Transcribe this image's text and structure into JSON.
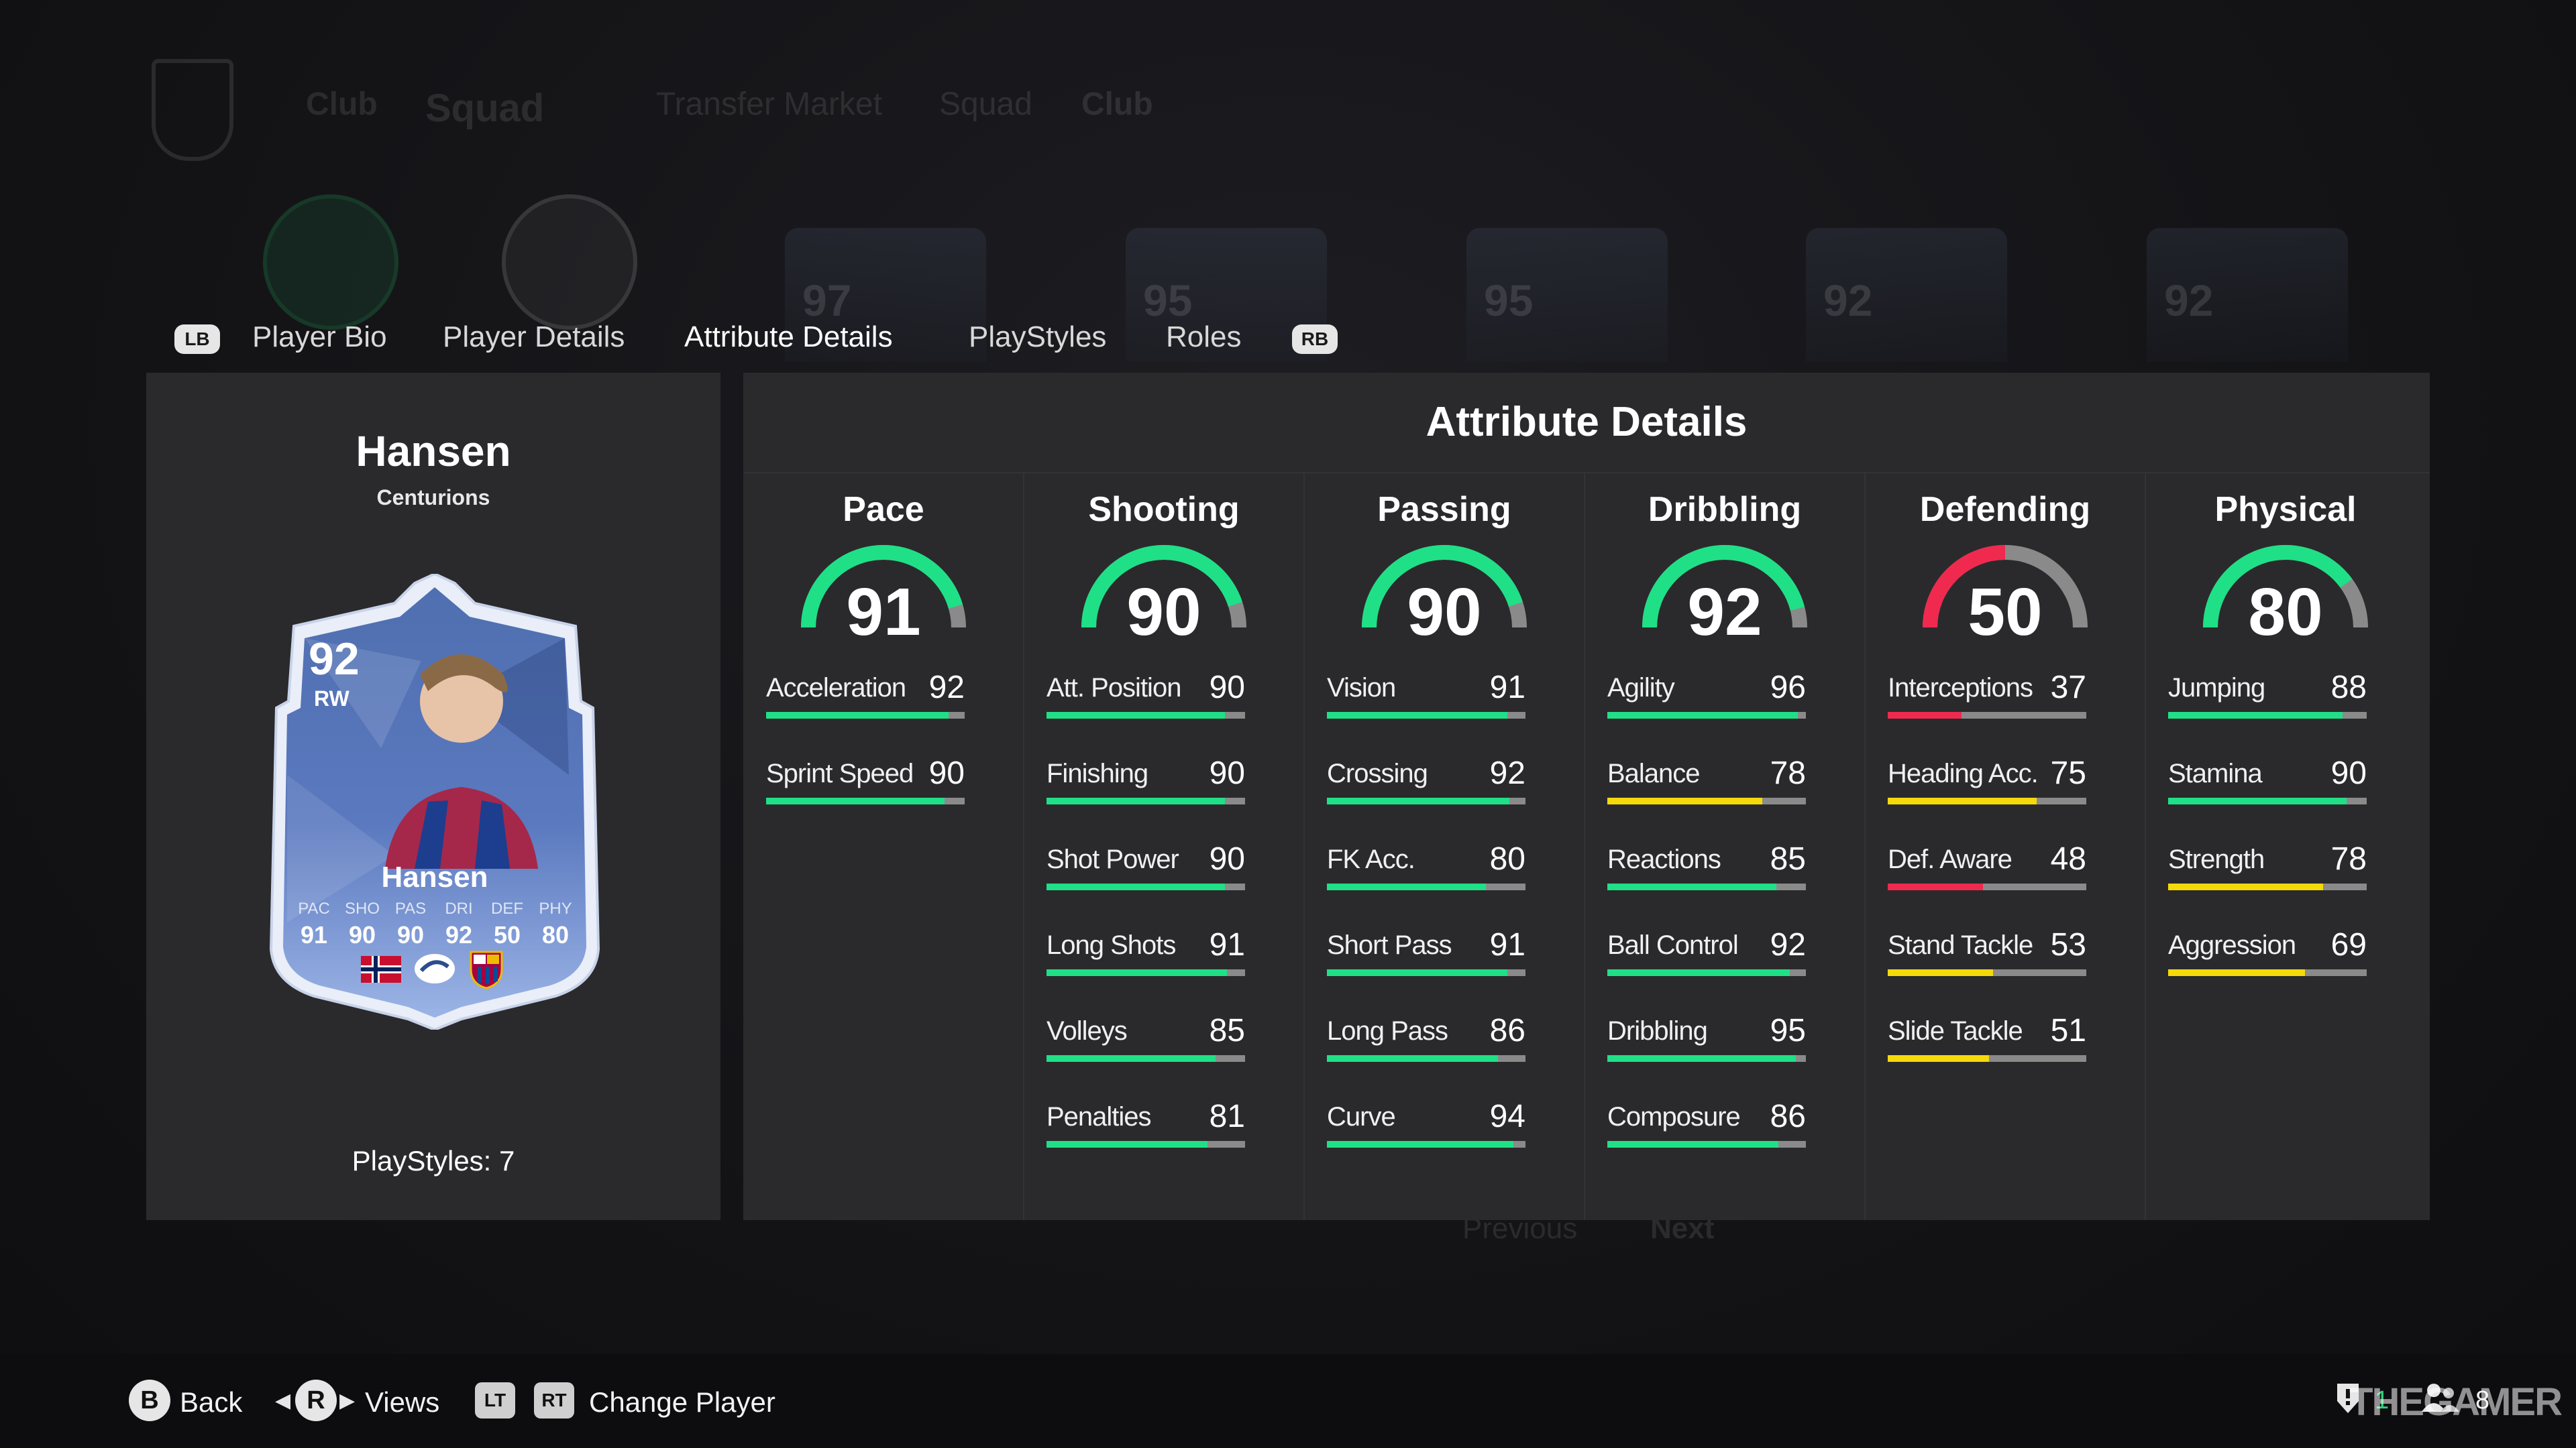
{
  "background": {
    "nav": [
      "Club",
      "Squad",
      "Transfer Market",
      "Squad",
      "Club"
    ],
    "card_ratings": [
      "97",
      "95",
      "95",
      "92",
      "92"
    ],
    "pagination": [
      "Previous",
      "Next"
    ]
  },
  "tabs": {
    "left_bumper": "LB",
    "right_bumper": "RB",
    "items": [
      "Player Bio",
      "Player Details",
      "Attribute Details",
      "PlayStyles",
      "Roles"
    ],
    "active": "Attribute Details"
  },
  "player": {
    "name": "Hansen",
    "team": "Centurions",
    "playstyles_label": "PlayStyles: 7",
    "card": {
      "rating": "92",
      "position": "RW",
      "name": "Hansen",
      "stats": [
        {
          "label": "PAC",
          "value": "91"
        },
        {
          "label": "SHO",
          "value": "90"
        },
        {
          "label": "PAS",
          "value": "90"
        },
        {
          "label": "DRI",
          "value": "92"
        },
        {
          "label": "DEF",
          "value": "50"
        },
        {
          "label": "PHY",
          "value": "80"
        }
      ],
      "badges": [
        "norway-flag-icon",
        "liga-f-icon",
        "barcelona-crest-icon"
      ]
    }
  },
  "attributes": {
    "title": "Attribute Details",
    "categories": [
      {
        "name": "Pace",
        "value": 91,
        "attrs": [
          {
            "name": "Acceleration",
            "value": 92
          },
          {
            "name": "Sprint Speed",
            "value": 90
          }
        ]
      },
      {
        "name": "Shooting",
        "value": 90,
        "attrs": [
          {
            "name": "Att. Position",
            "value": 90
          },
          {
            "name": "Finishing",
            "value": 90
          },
          {
            "name": "Shot Power",
            "value": 90
          },
          {
            "name": "Long Shots",
            "value": 91
          },
          {
            "name": "Volleys",
            "value": 85
          },
          {
            "name": "Penalties",
            "value": 81
          }
        ]
      },
      {
        "name": "Passing",
        "value": 90,
        "attrs": [
          {
            "name": "Vision",
            "value": 91
          },
          {
            "name": "Crossing",
            "value": 92
          },
          {
            "name": "FK Acc.",
            "value": 80
          },
          {
            "name": "Short Pass",
            "value": 91
          },
          {
            "name": "Long Pass",
            "value": 86
          },
          {
            "name": "Curve",
            "value": 94
          }
        ]
      },
      {
        "name": "Dribbling",
        "value": 92,
        "attrs": [
          {
            "name": "Agility",
            "value": 96
          },
          {
            "name": "Balance",
            "value": 78
          },
          {
            "name": "Reactions",
            "value": 85
          },
          {
            "name": "Ball Control",
            "value": 92
          },
          {
            "name": "Dribbling",
            "value": 95
          },
          {
            "name": "Composure",
            "value": 86
          }
        ]
      },
      {
        "name": "Defending",
        "value": 50,
        "attrs": [
          {
            "name": "Interceptions",
            "value": 37
          },
          {
            "name": "Heading Acc.",
            "value": 75
          },
          {
            "name": "Def. Aware",
            "value": 48
          },
          {
            "name": "Stand Tackle",
            "value": 53
          },
          {
            "name": "Slide Tackle",
            "value": 51
          }
        ]
      },
      {
        "name": "Physical",
        "value": 80,
        "attrs": [
          {
            "name": "Jumping",
            "value": 88
          },
          {
            "name": "Stamina",
            "value": 90
          },
          {
            "name": "Strength",
            "value": 78
          },
          {
            "name": "Aggression",
            "value": 69
          }
        ]
      }
    ]
  },
  "colors": {
    "high": "#1fe086",
    "medium": "#f5d90a",
    "low": "#f0294f",
    "track": "#8a8a8a"
  },
  "bottom_bar": {
    "back": {
      "button": "B",
      "label": "Back"
    },
    "views": {
      "button": "R",
      "label": "Views"
    },
    "change": {
      "buttons": [
        "LT",
        "RT"
      ],
      "label": "Change Player"
    },
    "notifications_count": "1",
    "friends_count": "8",
    "watermark": "THEGAMER"
  }
}
